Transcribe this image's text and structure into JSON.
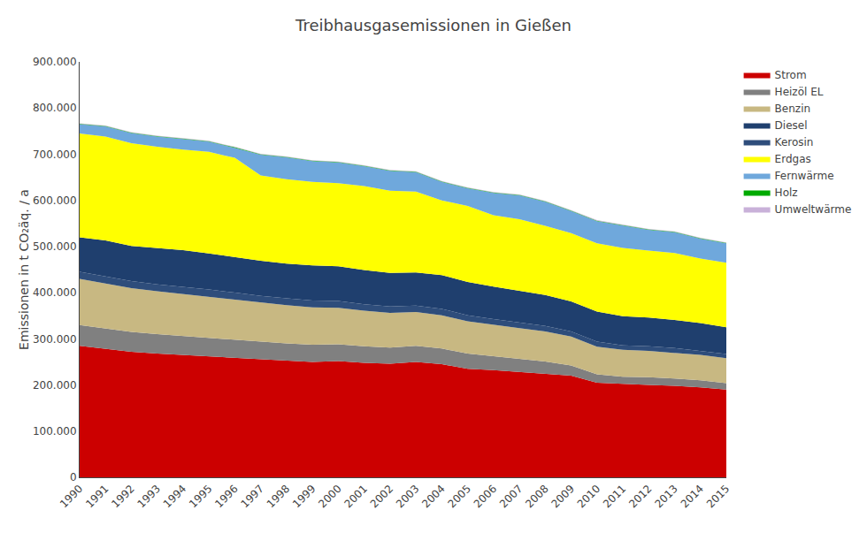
{
  "chart_data": {
    "type": "area",
    "stacked": true,
    "title": "Treibhausgasemissionen in Gießen",
    "ylabel": "Emissionen in t CO₂äq. / a",
    "x": [
      1990,
      1991,
      1992,
      1993,
      1994,
      1995,
      1996,
      1997,
      1998,
      1999,
      2000,
      2001,
      2002,
      2003,
      2004,
      2005,
      2006,
      2007,
      2008,
      2009,
      2010,
      2011,
      2012,
      2013,
      2014,
      2015
    ],
    "xlim": [
      1990,
      2015
    ],
    "xticks": [
      1990,
      1991,
      1992,
      1993,
      1994,
      1995,
      1996,
      1997,
      1998,
      1999,
      2000,
      2001,
      2002,
      2003,
      2004,
      2005,
      2006,
      2007,
      2008,
      2009,
      2010,
      2011,
      2012,
      2013,
      2014,
      2015
    ],
    "ylim": [
      0,
      900000
    ],
    "yticks": [
      0,
      {
        "value": 100000,
        "label": "100.000"
      },
      {
        "value": 200000,
        "label": "200.000"
      },
      {
        "value": 300000,
        "label": "300.000"
      },
      {
        "value": 400000,
        "label": "400.000"
      },
      {
        "value": 500000,
        "label": "500.000"
      },
      {
        "value": 600000,
        "label": "600.000"
      },
      {
        "value": 700000,
        "label": "700.000"
      },
      {
        "value": 800000,
        "label": "800.000"
      },
      {
        "value": 900000,
        "label": "900.000"
      }
    ],
    "series": [
      {
        "name": "Strom",
        "color": "#CC0000",
        "values": [
          285000,
          278000,
          272000,
          268000,
          265000,
          262000,
          258000,
          255000,
          252000,
          250000,
          252000,
          248000,
          246000,
          250000,
          245000,
          235000,
          232000,
          228000,
          224000,
          220000,
          205000,
          202000,
          200000,
          198000,
          195000,
          190000
        ]
      },
      {
        "name": "Heizöl EL",
        "color": "#808080",
        "values": [
          45000,
          44000,
          43000,
          42000,
          41000,
          40000,
          39000,
          38000,
          38000,
          37000,
          36000,
          36000,
          35000,
          35000,
          34000,
          33000,
          30000,
          28000,
          27000,
          22000,
          18000,
          16000,
          17000,
          16000,
          15000,
          14000
        ]
      },
      {
        "name": "Benzin",
        "color": "#C8B882",
        "values": [
          100000,
          98000,
          95000,
          93000,
          91000,
          89000,
          87000,
          85000,
          83000,
          81000,
          79000,
          77000,
          75000,
          73000,
          72000,
          70000,
          68000,
          67000,
          65000,
          63000,
          60000,
          58000,
          57000,
          56000,
          55000,
          54000
        ]
      },
      {
        "name": "Kerosin",
        "color": "#2E4D7B",
        "values": [
          15000,
          15000,
          15000,
          15000,
          16000,
          16000,
          16000,
          15000,
          15000,
          15000,
          15000,
          14000,
          14000,
          14000,
          14000,
          13000,
          13000,
          13000,
          12000,
          11000,
          11000,
          10000,
          10000,
          10000,
          9000,
          9000
        ]
      },
      {
        "name": "Diesel",
        "color": "#1F3F6E",
        "values": [
          75000,
          78000,
          76000,
          78000,
          79000,
          78000,
          77000,
          76000,
          75000,
          76000,
          75000,
          74000,
          73000,
          72000,
          73000,
          72000,
          70000,
          68000,
          67000,
          65000,
          65000,
          63000,
          62000,
          61000,
          60000,
          58000
        ]
      },
      {
        "name": "Erdgas",
        "color": "#FFFF00",
        "values": [
          225000,
          225000,
          223000,
          220000,
          218000,
          220000,
          215000,
          185000,
          183000,
          181000,
          180000,
          182000,
          178000,
          175000,
          162000,
          165000,
          155000,
          155000,
          150000,
          148000,
          148000,
          148000,
          145000,
          145000,
          140000,
          140000
        ]
      },
      {
        "name": "Fernwärme",
        "color": "#6FA8DC",
        "values": [
          20000,
          22000,
          22000,
          22000,
          23000,
          22000,
          22000,
          45000,
          47000,
          45000,
          45000,
          43000,
          43000,
          42000,
          40000,
          38000,
          48000,
          52000,
          52000,
          48000,
          48000,
          48000,
          45000,
          45000,
          43000,
          42000
        ]
      },
      {
        "name": "Holz",
        "color": "#00AA00",
        "values": [
          1000,
          1000,
          1000,
          1000,
          1000,
          1000,
          1000,
          1000,
          1000,
          1000,
          1000,
          1000,
          1000,
          1000,
          1000,
          1000,
          1000,
          1000,
          1000,
          1000,
          1000,
          1000,
          1000,
          1000,
          1000,
          1000
        ]
      },
      {
        "name": "Umweltwärme",
        "color": "#C9B1D9",
        "values": [
          1000,
          1000,
          1000,
          1000,
          1000,
          1000,
          1000,
          1000,
          1000,
          1000,
          1000,
          1000,
          1000,
          1000,
          1000,
          1000,
          1000,
          1000,
          1000,
          1000,
          1000,
          1000,
          1000,
          1000,
          1000,
          1000
        ]
      }
    ],
    "legend_order": [
      "Strom",
      "Heizöl EL",
      "Benzin",
      "Diesel",
      "Kerosin",
      "Erdgas",
      "Fernwärme",
      "Holz",
      "Umweltwärme"
    ],
    "legend": "upper right",
    "grid": false
  }
}
